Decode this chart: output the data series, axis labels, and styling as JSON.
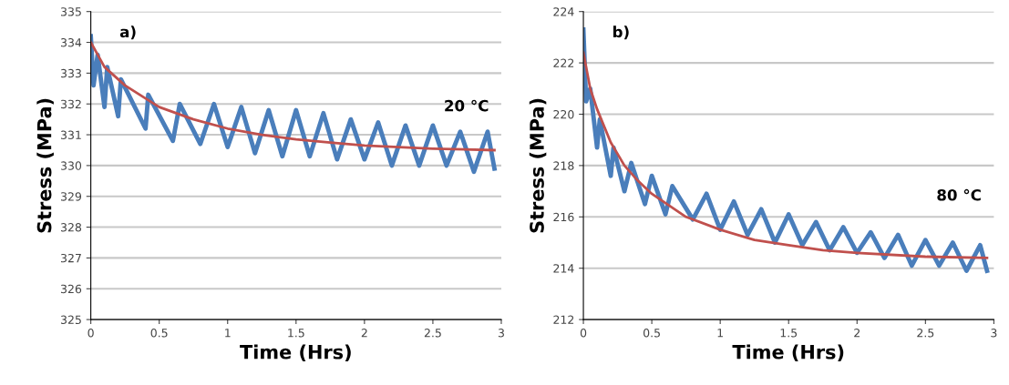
{
  "chart_data": [
    {
      "type": "line",
      "xlabel": "Time (Hrs)",
      "ylabel": "Stress (MPa)",
      "annotations": [
        "a)",
        "20 °C"
      ],
      "xlim": [
        0,
        3
      ],
      "xticks": [
        0,
        0.5,
        1,
        1.5,
        2,
        2.5,
        3
      ],
      "ylim": [
        325,
        335
      ],
      "yticks": [
        325,
        326,
        327,
        328,
        329,
        330,
        331,
        332,
        333,
        334,
        335
      ],
      "grid": "y",
      "series": [
        {
          "color": "#4a7ebb",
          "x": [
            0,
            0.02,
            0.05,
            0.1,
            0.12,
            0.2,
            0.22,
            0.4,
            0.42,
            0.6,
            0.65,
            0.8,
            0.9,
            1.0,
            1.1,
            1.2,
            1.3,
            1.4,
            1.5,
            1.6,
            1.7,
            1.8,
            1.9,
            2.0,
            2.1,
            2.2,
            2.3,
            2.4,
            2.5,
            2.6,
            2.7,
            2.8,
            2.9,
            2.95
          ],
          "values": [
            334.2,
            332.6,
            333.6,
            331.9,
            333.2,
            331.6,
            332.8,
            331.2,
            332.3,
            330.8,
            332.0,
            330.7,
            332.0,
            330.6,
            331.9,
            330.4,
            331.8,
            330.3,
            331.8,
            330.3,
            331.7,
            330.2,
            331.5,
            330.2,
            331.4,
            330.0,
            331.3,
            330.0,
            331.3,
            330.0,
            331.1,
            329.8,
            331.1,
            329.9
          ]
        },
        {
          "color": "#c0504d",
          "x": [
            0,
            0.1,
            0.25,
            0.5,
            0.75,
            1,
            1.25,
            1.5,
            1.75,
            2,
            2.5,
            2.95
          ],
          "values": [
            334.0,
            333.2,
            332.6,
            331.9,
            331.5,
            331.2,
            331.0,
            330.85,
            330.75,
            330.65,
            330.55,
            330.5
          ]
        }
      ]
    },
    {
      "type": "line",
      "xlabel": "Time (Hrs)",
      "ylabel": "Stress (MPa)",
      "annotations": [
        "b)",
        "80 °C"
      ],
      "xlim": [
        0,
        3
      ],
      "xticks": [
        0,
        0.5,
        1,
        1.5,
        2,
        2.5,
        3
      ],
      "ylim": [
        212,
        224
      ],
      "yticks": [
        212,
        214,
        216,
        218,
        220,
        222,
        224
      ],
      "grid": "y",
      "series": [
        {
          "color": "#4a7ebb",
          "x": [
            0,
            0.02,
            0.05,
            0.1,
            0.12,
            0.2,
            0.22,
            0.3,
            0.35,
            0.45,
            0.5,
            0.6,
            0.65,
            0.8,
            0.9,
            1.0,
            1.1,
            1.2,
            1.3,
            1.4,
            1.5,
            1.6,
            1.7,
            1.8,
            1.9,
            2.0,
            2.1,
            2.2,
            2.3,
            2.4,
            2.5,
            2.6,
            2.7,
            2.8,
            2.9,
            2.95
          ],
          "values": [
            223.3,
            220.5,
            221.0,
            218.7,
            219.8,
            217.6,
            218.7,
            217.0,
            218.1,
            216.5,
            217.6,
            216.1,
            217.2,
            215.9,
            216.9,
            215.5,
            216.6,
            215.3,
            216.3,
            215.0,
            216.1,
            214.9,
            215.8,
            214.7,
            215.6,
            214.6,
            215.4,
            214.4,
            215.3,
            214.1,
            215.1,
            214.1,
            215.0,
            213.9,
            214.9,
            213.9
          ]
        },
        {
          "color": "#c0504d",
          "x": [
            0,
            0.05,
            0.1,
            0.2,
            0.3,
            0.4,
            0.5,
            0.75,
            1,
            1.25,
            1.5,
            1.75,
            2,
            2.5,
            2.95
          ],
          "values": [
            222.4,
            221.0,
            220.2,
            218.9,
            218.0,
            217.4,
            216.9,
            216.0,
            215.5,
            215.1,
            214.9,
            214.7,
            214.6,
            214.45,
            214.4
          ]
        }
      ]
    }
  ]
}
